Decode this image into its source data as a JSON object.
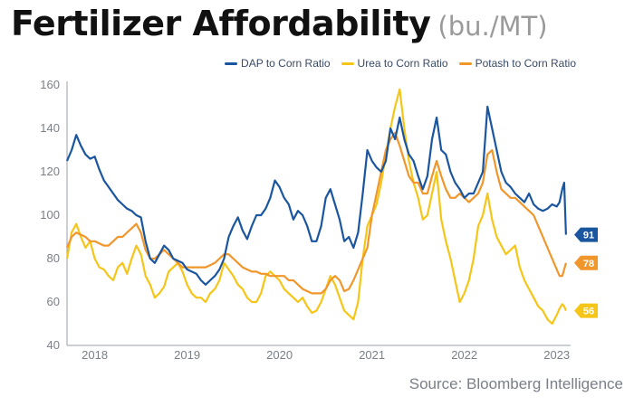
{
  "title": "Fertilizer Affordability",
  "subtitle": "(bu./MT)",
  "source": "Source: Bloomberg Intelligence",
  "colors": {
    "dap": "#1a56a0",
    "urea": "#f5c518",
    "potash": "#f0962a",
    "axis": "#9aa0aa"
  },
  "chart_data": {
    "type": "line",
    "title": "Fertilizer Affordability",
    "subtitle": "(bu./MT)",
    "xlabel": "",
    "ylabel": "",
    "xlim": [
      2017.7,
      2023.15
    ],
    "ylim": [
      40,
      160
    ],
    "yticks": [
      40,
      60,
      80,
      100,
      120,
      140,
      160
    ],
    "xticks": [
      "2018",
      "2019",
      "2020",
      "2021",
      "2022",
      "2023"
    ],
    "grid": false,
    "legend_position": "top-right",
    "series": [
      {
        "name": "DAP to Corn Ratio",
        "key": "dap",
        "end_label": "91",
        "x": [
          2017.7,
          2017.75,
          2017.8,
          2017.85,
          2017.9,
          2017.95,
          2018.0,
          2018.05,
          2018.1,
          2018.15,
          2018.2,
          2018.25,
          2018.3,
          2018.35,
          2018.4,
          2018.45,
          2018.5,
          2018.55,
          2018.6,
          2018.65,
          2018.7,
          2018.75,
          2018.8,
          2018.85,
          2018.9,
          2018.95,
          2019.0,
          2019.05,
          2019.1,
          2019.15,
          2019.2,
          2019.25,
          2019.3,
          2019.35,
          2019.4,
          2019.45,
          2019.5,
          2019.55,
          2019.6,
          2019.65,
          2019.7,
          2019.75,
          2019.8,
          2019.85,
          2019.9,
          2019.95,
          2020.0,
          2020.05,
          2020.1,
          2020.15,
          2020.2,
          2020.25,
          2020.3,
          2020.35,
          2020.4,
          2020.45,
          2020.5,
          2020.55,
          2020.6,
          2020.65,
          2020.7,
          2020.75,
          2020.8,
          2020.85,
          2020.9,
          2020.95,
          2021.0,
          2021.05,
          2021.1,
          2021.15,
          2021.2,
          2021.25,
          2021.3,
          2021.35,
          2021.4,
          2021.45,
          2021.5,
          2021.55,
          2021.6,
          2021.65,
          2021.7,
          2021.75,
          2021.8,
          2021.85,
          2021.9,
          2021.95,
          2022.0,
          2022.05,
          2022.1,
          2022.15,
          2022.2,
          2022.25,
          2022.3,
          2022.35,
          2022.4,
          2022.45,
          2022.5,
          2022.55,
          2022.6,
          2022.65,
          2022.7,
          2022.75,
          2022.8,
          2022.85,
          2022.9,
          2022.95,
          2023.0,
          2023.03,
          2023.06,
          2023.08,
          2023.1
        ],
        "y": [
          125,
          130,
          137,
          132,
          128,
          126,
          127,
          121,
          116,
          113,
          110,
          107,
          105,
          103,
          102,
          100,
          99,
          88,
          80,
          78,
          82,
          86,
          84,
          80,
          79,
          78,
          75,
          74,
          73,
          70,
          68,
          70,
          72,
          75,
          80,
          90,
          95,
          99,
          93,
          89,
          95,
          100,
          100,
          103,
          108,
          116,
          113,
          108,
          105,
          98,
          102,
          100,
          95,
          88,
          88,
          95,
          108,
          112,
          105,
          98,
          88,
          90,
          85,
          92,
          110,
          130,
          125,
          122,
          120,
          125,
          140,
          135,
          145,
          135,
          128,
          125,
          118,
          112,
          118,
          135,
          145,
          130,
          128,
          120,
          115,
          112,
          108,
          110,
          110,
          115,
          120,
          150,
          140,
          130,
          120,
          115,
          113,
          110,
          108,
          106,
          110,
          105,
          103,
          102,
          103,
          105,
          104,
          106,
          112,
          115,
          91
        ]
      },
      {
        "name": "Urea to Corn Ratio",
        "key": "urea",
        "end_label": "56",
        "x": [
          2017.7,
          2017.75,
          2017.8,
          2017.85,
          2017.9,
          2017.95,
          2018.0,
          2018.05,
          2018.1,
          2018.15,
          2018.2,
          2018.25,
          2018.3,
          2018.35,
          2018.4,
          2018.45,
          2018.5,
          2018.55,
          2018.6,
          2018.65,
          2018.7,
          2018.75,
          2018.8,
          2018.85,
          2018.9,
          2018.95,
          2019.0,
          2019.05,
          2019.1,
          2019.15,
          2019.2,
          2019.25,
          2019.3,
          2019.35,
          2019.4,
          2019.45,
          2019.5,
          2019.55,
          2019.6,
          2019.65,
          2019.7,
          2019.75,
          2019.8,
          2019.85,
          2019.9,
          2019.95,
          2020.0,
          2020.05,
          2020.1,
          2020.15,
          2020.2,
          2020.25,
          2020.3,
          2020.35,
          2020.4,
          2020.45,
          2020.5,
          2020.55,
          2020.6,
          2020.65,
          2020.7,
          2020.75,
          2020.8,
          2020.85,
          2020.9,
          2020.95,
          2021.0,
          2021.05,
          2021.1,
          2021.15,
          2021.2,
          2021.25,
          2021.3,
          2021.35,
          2021.4,
          2021.45,
          2021.5,
          2021.55,
          2021.6,
          2021.65,
          2021.7,
          2021.75,
          2021.8,
          2021.85,
          2021.9,
          2021.95,
          2022.0,
          2022.05,
          2022.1,
          2022.15,
          2022.2,
          2022.25,
          2022.3,
          2022.35,
          2022.4,
          2022.45,
          2022.5,
          2022.55,
          2022.6,
          2022.65,
          2022.7,
          2022.75,
          2022.8,
          2022.85,
          2022.9,
          2022.95,
          2023.0,
          2023.03,
          2023.06,
          2023.08,
          2023.1
        ],
        "y": [
          80,
          92,
          96,
          90,
          85,
          88,
          80,
          76,
          75,
          72,
          70,
          76,
          78,
          73,
          80,
          86,
          82,
          72,
          68,
          62,
          64,
          67,
          74,
          76,
          78,
          74,
          68,
          64,
          62,
          62,
          60,
          64,
          66,
          70,
          78,
          75,
          72,
          68,
          66,
          62,
          60,
          60,
          64,
          72,
          74,
          72,
          70,
          66,
          64,
          62,
          60,
          62,
          58,
          55,
          56,
          60,
          66,
          72,
          68,
          62,
          56,
          54,
          52,
          60,
          80,
          95,
          100,
          105,
          115,
          128,
          140,
          150,
          158,
          140,
          125,
          115,
          108,
          98,
          100,
          110,
          120,
          98,
          88,
          80,
          70,
          60,
          64,
          70,
          80,
          95,
          100,
          110,
          98,
          90,
          86,
          82,
          84,
          86,
          76,
          70,
          66,
          62,
          58,
          56,
          52,
          50,
          54,
          57,
          59,
          58,
          56
        ]
      },
      {
        "name": "Potash to Corn Ratio",
        "key": "potash",
        "end_label": "78",
        "x": [
          2017.7,
          2017.75,
          2017.8,
          2017.85,
          2017.9,
          2017.95,
          2018.0,
          2018.05,
          2018.1,
          2018.15,
          2018.2,
          2018.25,
          2018.3,
          2018.35,
          2018.4,
          2018.45,
          2018.5,
          2018.55,
          2018.6,
          2018.65,
          2018.7,
          2018.75,
          2018.8,
          2018.85,
          2018.9,
          2018.95,
          2019.0,
          2019.05,
          2019.1,
          2019.15,
          2019.2,
          2019.25,
          2019.3,
          2019.35,
          2019.4,
          2019.45,
          2019.5,
          2019.55,
          2019.6,
          2019.65,
          2019.7,
          2019.75,
          2019.8,
          2019.85,
          2019.9,
          2019.95,
          2020.0,
          2020.05,
          2020.1,
          2020.15,
          2020.2,
          2020.25,
          2020.3,
          2020.35,
          2020.4,
          2020.45,
          2020.5,
          2020.55,
          2020.6,
          2020.65,
          2020.7,
          2020.75,
          2020.8,
          2020.85,
          2020.9,
          2020.95,
          2021.0,
          2021.05,
          2021.1,
          2021.15,
          2021.2,
          2021.25,
          2021.3,
          2021.35,
          2021.4,
          2021.45,
          2021.5,
          2021.55,
          2021.6,
          2021.65,
          2021.7,
          2021.75,
          2021.8,
          2021.85,
          2021.9,
          2021.95,
          2022.0,
          2022.05,
          2022.1,
          2022.15,
          2022.2,
          2022.25,
          2022.3,
          2022.35,
          2022.4,
          2022.45,
          2022.5,
          2022.55,
          2022.6,
          2022.65,
          2022.7,
          2022.75,
          2022.8,
          2022.85,
          2022.9,
          2022.95,
          2023.0,
          2023.03,
          2023.06,
          2023.08,
          2023.1
        ],
        "y": [
          85,
          90,
          92,
          91,
          90,
          88,
          88,
          87,
          86,
          86,
          88,
          90,
          90,
          92,
          94,
          96,
          92,
          84,
          80,
          80,
          82,
          84,
          82,
          80,
          78,
          76,
          76,
          76,
          76,
          76,
          76,
          77,
          78,
          80,
          82,
          82,
          80,
          78,
          76,
          75,
          74,
          74,
          73,
          73,
          72,
          72,
          72,
          72,
          70,
          70,
          68,
          66,
          65,
          64,
          64,
          64,
          66,
          70,
          72,
          70,
          65,
          66,
          70,
          75,
          80,
          85,
          100,
          110,
          120,
          130,
          135,
          138,
          132,
          125,
          118,
          115,
          115,
          110,
          110,
          118,
          125,
          118,
          112,
          108,
          108,
          110,
          108,
          106,
          108,
          110,
          115,
          128,
          130,
          120,
          112,
          110,
          108,
          108,
          106,
          104,
          102,
          100,
          95,
          90,
          85,
          80,
          75,
          72,
          72,
          75,
          78
        ]
      }
    ]
  }
}
